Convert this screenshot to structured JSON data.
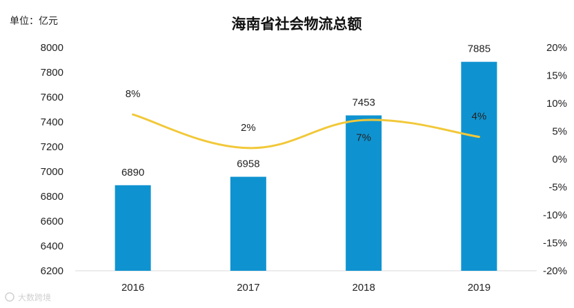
{
  "chart_data": {
    "type": "bar",
    "title": "海南省社会物流总额",
    "unit_label": "单位：亿元",
    "categories": [
      "2016",
      "2017",
      "2018",
      "2019"
    ],
    "series": [
      {
        "values": [
          6890,
          6958,
          7453,
          7885
        ]
      },
      {
        "values": [
          8,
          2,
          7,
          4
        ]
      }
    ],
    "line_value_labels": [
      "8%",
      "2%",
      "7%",
      "4%"
    ],
    "y_left": {
      "min": 6200,
      "max": 8000,
      "ticks": [
        6200,
        6400,
        6600,
        6800,
        7000,
        7200,
        7400,
        7600,
        7800,
        8000
      ]
    },
    "y_right": {
      "min": -20,
      "max": 20,
      "ticks": [
        "-20%",
        "-15%",
        "-10%",
        "-5%",
        "0%",
        "5%",
        "10%",
        "15%",
        "20%"
      ]
    },
    "grid": false,
    "legend": "none",
    "colors": {
      "bar": "#0f93d0",
      "line": "#f2c838"
    }
  },
  "watermark": "大数跨境"
}
